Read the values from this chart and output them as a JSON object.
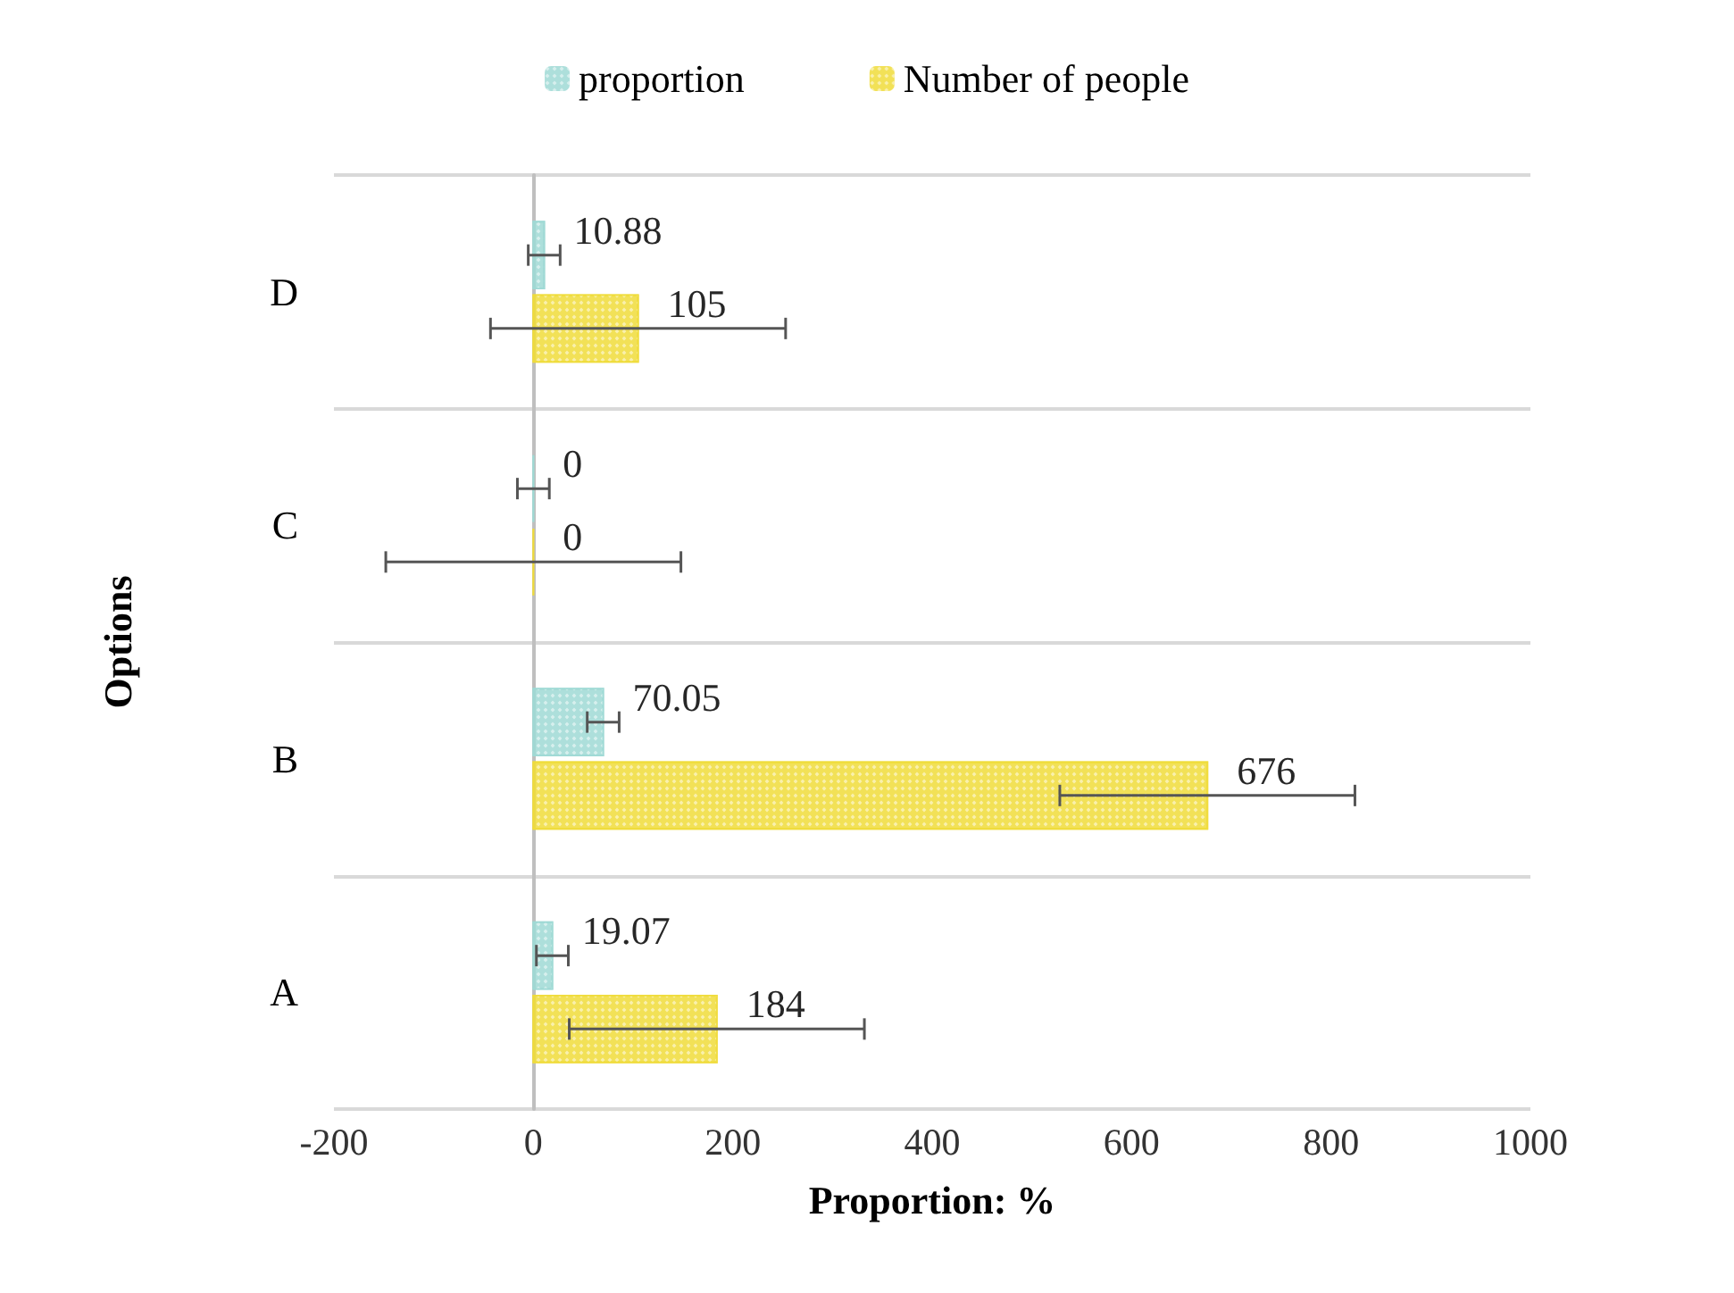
{
  "chart_data": {
    "type": "bar",
    "orientation": "horizontal",
    "xlabel": "Proportion: %",
    "ylabel": "Options",
    "categories": [
      "D",
      "C",
      "B",
      "A"
    ],
    "series": [
      {
        "name": "proportion",
        "color": "#9fd9d5",
        "values": [
          10.88,
          0,
          70.05,
          19.07
        ],
        "errors": [
          16,
          16,
          16,
          16
        ]
      },
      {
        "name": "Number of people",
        "color": "#f0dc3a",
        "values": [
          105,
          0,
          676,
          184
        ],
        "errors": [
          148,
          148,
          148,
          148
        ]
      }
    ],
    "xlim": [
      -200,
      1000
    ],
    "xticks": [
      -200,
      0,
      200,
      400,
      600,
      800,
      1000
    ],
    "grid": "y",
    "legend": "top",
    "data_labels": true
  }
}
